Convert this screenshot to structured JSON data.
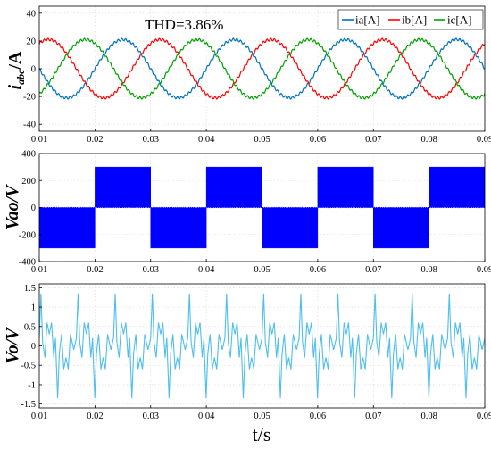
{
  "xlabel": "t/s",
  "chart_data": [
    {
      "type": "line",
      "ylabel_main": "i",
      "ylabel_sub": "abc",
      "ylabel_unit": "/A",
      "annotation": "THD=3.86%",
      "legend_position": "top-right",
      "xlim": [
        0.01,
        0.09
      ],
      "ylim": [
        -45,
        45
      ],
      "x_ticks": [
        "0.01",
        "0.02",
        "0.03",
        "0.04",
        "0.05",
        "0.06",
        "0.07",
        "0.08",
        "0.09"
      ],
      "y_ticks": [
        "40",
        "20",
        "0",
        "-20",
        "-40"
      ],
      "y_tick_values": [
        40,
        20,
        0,
        -20,
        -40
      ],
      "grid": true,
      "frequency_hz": 50,
      "series": [
        {
          "name": "ia[A]",
          "color": "#0072BD",
          "amplitude": 21,
          "phase_deg": 0
        },
        {
          "name": "ib[A]",
          "color": "#FF0000",
          "amplitude": 21,
          "phase_deg": -120
        },
        {
          "name": "ic[A]",
          "color": "#00A000",
          "amplitude": 21,
          "phase_deg": 120
        }
      ]
    },
    {
      "type": "area",
      "ylabel": "Vao/V",
      "xlim": [
        0.01,
        0.09
      ],
      "ylim": [
        -400,
        400
      ],
      "x_ticks": [
        "0.01",
        "0.02",
        "0.03",
        "0.04",
        "0.05",
        "0.06",
        "0.07",
        "0.08",
        "0.09"
      ],
      "y_ticks": [
        "400",
        "200",
        "0",
        "-200",
        "-400"
      ],
      "y_tick_values": [
        400,
        200,
        0,
        -200,
        -400
      ],
      "grid": true,
      "color": "#0000FF",
      "switching_envelope": [
        {
          "x0": 0.01,
          "x1": 0.02,
          "high": 0,
          "low": -300
        },
        {
          "x0": 0.02,
          "x1": 0.03,
          "high": 300,
          "low": 0
        },
        {
          "x0": 0.03,
          "x1": 0.04,
          "high": 0,
          "low": -300
        },
        {
          "x0": 0.04,
          "x1": 0.05,
          "high": 300,
          "low": 0
        },
        {
          "x0": 0.05,
          "x1": 0.06,
          "high": 0,
          "low": -300
        },
        {
          "x0": 0.06,
          "x1": 0.07,
          "high": 300,
          "low": 0
        },
        {
          "x0": 0.07,
          "x1": 0.08,
          "high": 0,
          "low": -300
        },
        {
          "x0": 0.08,
          "x1": 0.09,
          "high": 300,
          "low": 0
        }
      ]
    },
    {
      "type": "line",
      "ylabel": "Vo/V",
      "xlim": [
        0.01,
        0.09
      ],
      "ylim": [
        -1.6,
        1.6
      ],
      "x_ticks": [
        "0.01",
        "0.02",
        "0.03",
        "0.04",
        "0.05",
        "0.06",
        "0.07",
        "0.08",
        "0.09"
      ],
      "y_ticks": [
        "1.5",
        "1",
        "0.5",
        "0",
        "-0.5",
        "-1",
        "-1.5"
      ],
      "y_tick_values": [
        1.5,
        1,
        0.5,
        0,
        -0.5,
        -1,
        -1.5
      ],
      "grid": true,
      "color": "#4DBEEE",
      "period_s": 0.0066667,
      "pattern": [
        [
          0.0,
          0.2
        ],
        [
          0.0003,
          1.35
        ],
        [
          0.0006,
          0.1
        ],
        [
          0.001,
          -0.3
        ],
        [
          0.0014,
          0.6
        ],
        [
          0.0018,
          0.3
        ],
        [
          0.0022,
          0.6
        ],
        [
          0.0026,
          -0.3
        ],
        [
          0.0029,
          0.2
        ],
        [
          0.0033,
          -1.35
        ],
        [
          0.0036,
          -0.2
        ],
        [
          0.004,
          0.3
        ],
        [
          0.0044,
          -0.6
        ],
        [
          0.0048,
          -0.3
        ],
        [
          0.0052,
          -0.6
        ],
        [
          0.0056,
          0.3
        ],
        [
          0.0062,
          -0.1
        ]
      ]
    }
  ]
}
